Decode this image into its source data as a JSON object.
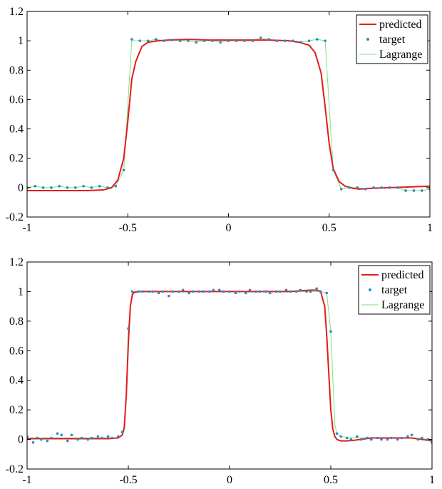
{
  "colors": {
    "predicted": "#e41a1c",
    "target": "#2b8cc4",
    "lagrange": "#7ee27a",
    "axis": "#000000"
  },
  "chart_data": [
    {
      "type": "line",
      "xlim": [
        -1,
        1
      ],
      "ylim": [
        -0.2,
        1.2
      ],
      "x_ticks": [
        -1,
        -0.5,
        0,
        0.5,
        1
      ],
      "x_tick_labels": [
        "-1",
        "-0.5",
        "0",
        "0.5",
        "1"
      ],
      "y_ticks": [
        -0.2,
        0,
        0.2,
        0.4,
        0.6,
        0.8,
        1,
        1.2
      ],
      "y_tick_labels": [
        "-0.2",
        "0",
        "0.2",
        "0.4",
        "0.6",
        "0.8",
        "1",
        "1.2"
      ],
      "legend": {
        "position": "top-right",
        "entries": [
          "predicted",
          "target",
          "Lagrange"
        ]
      },
      "series": [
        {
          "name": "predicted",
          "style": "line",
          "x": [
            -1,
            -0.9,
            -0.8,
            -0.7,
            -0.62,
            -0.58,
            -0.55,
            -0.52,
            -0.5,
            -0.48,
            -0.46,
            -0.43,
            -0.4,
            -0.35,
            -0.3,
            -0.2,
            -0.1,
            0,
            0.1,
            0.2,
            0.3,
            0.35,
            0.4,
            0.43,
            0.46,
            0.48,
            0.5,
            0.52,
            0.55,
            0.58,
            0.62,
            0.65,
            0.7,
            0.8,
            0.9,
            1
          ],
          "y": [
            -0.02,
            -0.02,
            -0.02,
            -0.02,
            -0.015,
            0.0,
            0.05,
            0.2,
            0.45,
            0.74,
            0.86,
            0.96,
            0.99,
            1.0,
            1.005,
            1.01,
            1.005,
            1.005,
            1.005,
            1.005,
            1.0,
            0.99,
            0.97,
            0.92,
            0.78,
            0.55,
            0.3,
            0.13,
            0.04,
            0.01,
            -0.005,
            -0.01,
            -0.005,
            0.0,
            0.005,
            0.01
          ]
        },
        {
          "name": "target",
          "style": "markers",
          "x": [
            -1,
            -0.96,
            -0.92,
            -0.88,
            -0.84,
            -0.8,
            -0.76,
            -0.72,
            -0.68,
            -0.64,
            -0.6,
            -0.56,
            -0.52,
            -0.48,
            -0.44,
            -0.4,
            -0.36,
            -0.32,
            -0.28,
            -0.24,
            -0.2,
            -0.16,
            -0.12,
            -0.08,
            -0.04,
            0,
            0.04,
            0.08,
            0.12,
            0.16,
            0.2,
            0.24,
            0.28,
            0.32,
            0.36,
            0.4,
            0.44,
            0.48,
            0.52,
            0.56,
            0.6,
            0.64,
            0.68,
            0.72,
            0.76,
            0.8,
            0.84,
            0.88,
            0.92,
            0.96,
            1
          ],
          "y": [
            0.0,
            0.01,
            0.0,
            0.0,
            0.01,
            0.0,
            0.0,
            0.01,
            0.0,
            0.01,
            0.0,
            0.01,
            0.12,
            1.01,
            1.0,
            1.0,
            1.01,
            1.0,
            1.005,
            1.0,
            1.0,
            0.99,
            1.0,
            1.0,
            0.99,
            1.0,
            1.0,
            1.0,
            1.0,
            1.02,
            1.01,
            1.0,
            1.0,
            1.0,
            0.99,
            1.0,
            1.01,
            1.0,
            0.12,
            -0.01,
            0.0,
            0.0,
            -0.01,
            0.0,
            0.0,
            0.0,
            0.0,
            -0.02,
            -0.02,
            -0.02,
            -0.01
          ]
        },
        {
          "name": "Lagrange",
          "style": "line",
          "x": [
            -1,
            -0.96,
            -0.92,
            -0.88,
            -0.84,
            -0.8,
            -0.76,
            -0.72,
            -0.68,
            -0.64,
            -0.6,
            -0.56,
            -0.52,
            -0.48,
            -0.44,
            -0.4,
            -0.36,
            -0.32,
            -0.28,
            -0.24,
            -0.2,
            -0.16,
            -0.12,
            -0.08,
            -0.04,
            0,
            0.04,
            0.08,
            0.12,
            0.16,
            0.2,
            0.24,
            0.28,
            0.32,
            0.36,
            0.4,
            0.44,
            0.48,
            0.52,
            0.56,
            0.6,
            0.64,
            0.68,
            0.72,
            0.76,
            0.8,
            0.84,
            0.88,
            0.92,
            0.96,
            1
          ],
          "y": [
            0.0,
            0.01,
            0.0,
            0.0,
            0.01,
            0.0,
            0.0,
            0.01,
            0.0,
            0.01,
            0.0,
            0.01,
            0.12,
            1.0,
            1.0,
            1.0,
            1.01,
            1.0,
            1.005,
            1.0,
            1.0,
            0.99,
            1.0,
            1.0,
            0.99,
            1.0,
            1.0,
            1.0,
            1.0,
            1.02,
            1.01,
            1.0,
            1.0,
            1.0,
            0.99,
            1.0,
            1.01,
            1.0,
            0.12,
            -0.01,
            0.0,
            0.0,
            -0.01,
            0.0,
            0.0,
            0.0,
            0.0,
            -0.02,
            -0.02,
            -0.02,
            -0.01
          ]
        }
      ]
    },
    {
      "type": "line",
      "xlim": [
        -1,
        1
      ],
      "ylim": [
        -0.2,
        1.2
      ],
      "x_ticks": [
        -1,
        -0.5,
        0,
        0.5,
        1
      ],
      "x_tick_labels": [
        "-1",
        "-0.5",
        "0",
        "0.5",
        "1"
      ],
      "y_ticks": [
        -0.2,
        0,
        0.2,
        0.4,
        0.6,
        0.8,
        1,
        1.2
      ],
      "y_tick_labels": [
        "-0.2",
        "0",
        "0.2",
        "0.4",
        "0.6",
        "0.8",
        "1",
        "1.2"
      ],
      "legend": {
        "position": "top-right",
        "entries": [
          "predicted",
          "target",
          "Lagrange"
        ]
      },
      "series": [
        {
          "name": "predicted",
          "style": "line",
          "x": [
            -1,
            -0.9,
            -0.8,
            -0.7,
            -0.6,
            -0.55,
            -0.53,
            -0.52,
            -0.51,
            -0.5,
            -0.49,
            -0.48,
            -0.47,
            -0.45,
            -0.4,
            -0.3,
            -0.2,
            -0.1,
            0,
            0.1,
            0.2,
            0.3,
            0.4,
            0.43,
            0.45,
            0.47,
            0.48,
            0.49,
            0.5,
            0.51,
            0.52,
            0.53,
            0.55,
            0.58,
            0.62,
            0.7,
            0.8,
            0.9,
            0.95,
            1
          ],
          "y": [
            0.005,
            0.005,
            0.005,
            0.005,
            0.005,
            0.01,
            0.03,
            0.08,
            0.3,
            0.65,
            0.9,
            0.98,
            0.995,
            1.0,
            1.0,
            1.0,
            1.0,
            1.0,
            1.0,
            1.0,
            1.0,
            1.0,
            1.01,
            1.01,
            1.0,
            0.9,
            0.7,
            0.45,
            0.2,
            0.07,
            0.02,
            0.0,
            -0.01,
            -0.01,
            -0.005,
            0.01,
            0.01,
            0.01,
            0.0,
            -0.01
          ]
        },
        {
          "name": "target",
          "style": "markers",
          "x": [
            -1,
            -0.97,
            -0.95,
            -0.93,
            -0.9,
            -0.88,
            -0.85,
            -0.83,
            -0.8,
            -0.78,
            -0.75,
            -0.73,
            -0.7,
            -0.68,
            -0.65,
            -0.63,
            -0.6,
            -0.58,
            -0.55,
            -0.53,
            -0.5,
            -0.48,
            -0.45,
            -0.43,
            -0.4,
            -0.38,
            -0.35,
            -0.33,
            -0.3,
            -0.28,
            -0.25,
            -0.23,
            -0.2,
            -0.18,
            -0.15,
            -0.13,
            -0.1,
            -0.08,
            -0.05,
            -0.03,
            0,
            0.03,
            0.05,
            0.08,
            0.1,
            0.13,
            0.15,
            0.18,
            0.2,
            0.23,
            0.25,
            0.28,
            0.3,
            0.33,
            0.35,
            0.38,
            0.4,
            0.43,
            0.45,
            0.48,
            0.5,
            0.53,
            0.55,
            0.58,
            0.6,
            0.63,
            0.65,
            0.68,
            0.7,
            0.73,
            0.75,
            0.78,
            0.8,
            0.83,
            0.85,
            0.88,
            0.9,
            0.93,
            0.95,
            0.98,
            1
          ],
          "y": [
            0.02,
            -0.02,
            0.01,
            0.0,
            -0.01,
            0.01,
            0.04,
            0.03,
            -0.01,
            0.03,
            0.0,
            0.01,
            0.0,
            0.01,
            0.02,
            0.01,
            0.02,
            0.01,
            0.02,
            0.05,
            0.75,
            1.0,
            1.0,
            1.0,
            1.0,
            1.0,
            0.99,
            1.0,
            0.97,
            1.0,
            1.0,
            1.01,
            0.99,
            1.0,
            1.0,
            1.0,
            1.0,
            1.01,
            1.01,
            1.0,
            1.0,
            0.99,
            1.0,
            0.99,
            1.01,
            1.0,
            1.0,
            1.0,
            0.99,
            1.0,
            1.0,
            1.01,
            1.0,
            1.0,
            1.01,
            1.0,
            1.0,
            1.02,
            1.0,
            0.99,
            0.73,
            0.04,
            0.02,
            0.01,
            0.0,
            0.02,
            0.0,
            0.01,
            0.0,
            0.01,
            0.0,
            0.0,
            0.01,
            0.0,
            0.01,
            0.02,
            0.03,
            0.0,
            0.01,
            0.0,
            -0.02
          ]
        },
        {
          "name": "Lagrange",
          "style": "line",
          "x": [
            -1,
            -0.9,
            -0.8,
            -0.7,
            -0.6,
            -0.55,
            -0.53,
            -0.52,
            -0.51,
            -0.5,
            -0.48,
            -0.45,
            -0.4,
            -0.3,
            -0.2,
            -0.1,
            0,
            0.1,
            0.2,
            0.3,
            0.4,
            0.45,
            0.48,
            0.5,
            0.52,
            0.53,
            0.55,
            0.6,
            0.7,
            0.8,
            0.9,
            1
          ],
          "y": [
            0.01,
            0.01,
            0.01,
            0.01,
            0.01,
            0.01,
            0.03,
            0.06,
            0.3,
            0.75,
            1.0,
            1.0,
            1.0,
            1.0,
            1.0,
            1.0,
            1.0,
            1.0,
            1.0,
            1.0,
            1.0,
            1.0,
            0.99,
            0.73,
            0.1,
            0.04,
            0.02,
            0.01,
            0.01,
            0.01,
            0.01,
            0.0
          ]
        }
      ]
    }
  ]
}
